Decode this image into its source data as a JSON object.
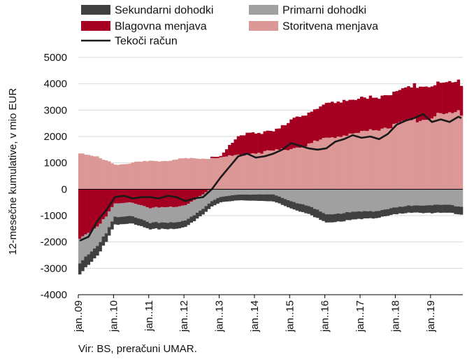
{
  "chart_data": {
    "type": "bar",
    "ylabel": "12-mesečne kumulative, v mio EUR",
    "ylim": [
      -4000,
      5000
    ],
    "yticks": [
      -4000,
      -3000,
      -2000,
      -1000,
      0,
      1000,
      2000,
      3000,
      4000,
      5000
    ],
    "ytick_labels": [
      "-4000",
      "-3000",
      "-2000",
      "-1000",
      "0",
      "1000",
      "2000",
      "3000",
      "4000",
      "5000"
    ],
    "x_ticks": [
      {
        "label": "jan..09",
        "index": 0
      },
      {
        "label": "jan..10",
        "index": 12
      },
      {
        "label": "jan..11",
        "index": 24
      },
      {
        "label": "jan..12",
        "index": 36
      },
      {
        "label": "jan..13",
        "index": 48
      },
      {
        "label": "jan..14",
        "index": 60
      },
      {
        "label": "jan..15",
        "index": 72
      },
      {
        "label": "jan..16",
        "index": 84
      },
      {
        "label": "jan..17",
        "index": 96
      },
      {
        "label": "jan..18",
        "index": 108
      },
      {
        "label": "jan..19",
        "index": 120
      }
    ],
    "n_months": 131,
    "grid": true,
    "legend_position": "top",
    "stacked": true,
    "series": [
      {
        "name": "Sekundarni dohodki",
        "key": "sec",
        "kind": "bar",
        "color": "#404040",
        "knots": [
          [
            0,
            -420
          ],
          [
            12,
            -300
          ],
          [
            24,
            -250
          ],
          [
            36,
            -240
          ],
          [
            48,
            -200
          ],
          [
            60,
            -240
          ],
          [
            72,
            -280
          ],
          [
            84,
            -320
          ],
          [
            96,
            -280
          ],
          [
            108,
            -250
          ],
          [
            120,
            -300
          ],
          [
            130,
            -300
          ]
        ]
      },
      {
        "name": "Primarni dohodki",
        "key": "pri",
        "kind": "bar",
        "color": "#a0a0a0",
        "knots": [
          [
            0,
            -900
          ],
          [
            6,
            -750
          ],
          [
            12,
            -500
          ],
          [
            24,
            -550
          ],
          [
            36,
            -600
          ],
          [
            44,
            -500
          ],
          [
            48,
            -300
          ],
          [
            54,
            -200
          ],
          [
            60,
            -200
          ],
          [
            66,
            -200
          ],
          [
            72,
            -450
          ],
          [
            78,
            -650
          ],
          [
            84,
            -950
          ],
          [
            90,
            -900
          ],
          [
            96,
            -850
          ],
          [
            102,
            -800
          ],
          [
            108,
            -700
          ],
          [
            114,
            -600
          ],
          [
            120,
            -600
          ],
          [
            126,
            -600
          ],
          [
            130,
            -650
          ]
        ]
      },
      {
        "name": "Blagovna menjava",
        "key": "goods",
        "kind": "bar",
        "color": "#a50021",
        "knots": [
          [
            0,
            -1900
          ],
          [
            6,
            -1400
          ],
          [
            9,
            -1000
          ],
          [
            12,
            -550
          ],
          [
            18,
            -500
          ],
          [
            24,
            -700
          ],
          [
            30,
            -700
          ],
          [
            36,
            -600
          ],
          [
            42,
            -200
          ],
          [
            45,
            50
          ],
          [
            48,
            50
          ],
          [
            51,
            400
          ],
          [
            54,
            700
          ],
          [
            57,
            800
          ],
          [
            60,
            750
          ],
          [
            66,
            750
          ],
          [
            69,
            850
          ],
          [
            72,
            1100
          ],
          [
            78,
            1200
          ],
          [
            84,
            1300
          ],
          [
            90,
            1300
          ],
          [
            96,
            1300
          ],
          [
            102,
            1200
          ],
          [
            108,
            1250
          ],
          [
            114,
            1300
          ],
          [
            120,
            1200
          ],
          [
            126,
            1200
          ],
          [
            130,
            1100
          ]
        ]
      },
      {
        "name": "Storitvena menjava",
        "key": "serv",
        "kind": "bar",
        "color": "#dc9896",
        "knots": [
          [
            0,
            1400
          ],
          [
            6,
            1200
          ],
          [
            12,
            950
          ],
          [
            18,
            1000
          ],
          [
            24,
            1050
          ],
          [
            30,
            1100
          ],
          [
            36,
            1150
          ],
          [
            42,
            1180
          ],
          [
            48,
            1200
          ],
          [
            54,
            1300
          ],
          [
            60,
            1380
          ],
          [
            66,
            1450
          ],
          [
            72,
            1550
          ],
          [
            78,
            1700
          ],
          [
            84,
            1950
          ],
          [
            90,
            2050
          ],
          [
            96,
            2150
          ],
          [
            102,
            2300
          ],
          [
            108,
            2450
          ],
          [
            114,
            2600
          ],
          [
            120,
            2750
          ],
          [
            126,
            2880
          ],
          [
            130,
            2900
          ]
        ]
      },
      {
        "name": "Tekoči račun",
        "key": "ca",
        "kind": "line",
        "color": "#1a1a1a",
        "knots": [
          [
            0,
            -1950
          ],
          [
            3,
            -1800
          ],
          [
            6,
            -1200
          ],
          [
            9,
            -800
          ],
          [
            12,
            -300
          ],
          [
            15,
            -250
          ],
          [
            18,
            -350
          ],
          [
            21,
            -300
          ],
          [
            24,
            -300
          ],
          [
            27,
            -350
          ],
          [
            30,
            -250
          ],
          [
            33,
            -300
          ],
          [
            36,
            -450
          ],
          [
            39,
            -350
          ],
          [
            42,
            -300
          ],
          [
            45,
            0
          ],
          [
            48,
            450
          ],
          [
            51,
            850
          ],
          [
            54,
            1250
          ],
          [
            57,
            1350
          ],
          [
            60,
            1200
          ],
          [
            63,
            1250
          ],
          [
            66,
            1350
          ],
          [
            69,
            1500
          ],
          [
            72,
            1750
          ],
          [
            75,
            1650
          ],
          [
            78,
            1550
          ],
          [
            81,
            1500
          ],
          [
            84,
            1550
          ],
          [
            87,
            1800
          ],
          [
            90,
            1900
          ],
          [
            93,
            2050
          ],
          [
            96,
            1950
          ],
          [
            99,
            2000
          ],
          [
            102,
            1900
          ],
          [
            105,
            2100
          ],
          [
            108,
            2450
          ],
          [
            111,
            2600
          ],
          [
            114,
            2700
          ],
          [
            117,
            2850
          ],
          [
            120,
            2550
          ],
          [
            123,
            2650
          ],
          [
            126,
            2550
          ],
          [
            129,
            2750
          ],
          [
            130,
            2700
          ]
        ]
      }
    ]
  },
  "source_note": "Vir: BS, preračuni UMAR."
}
